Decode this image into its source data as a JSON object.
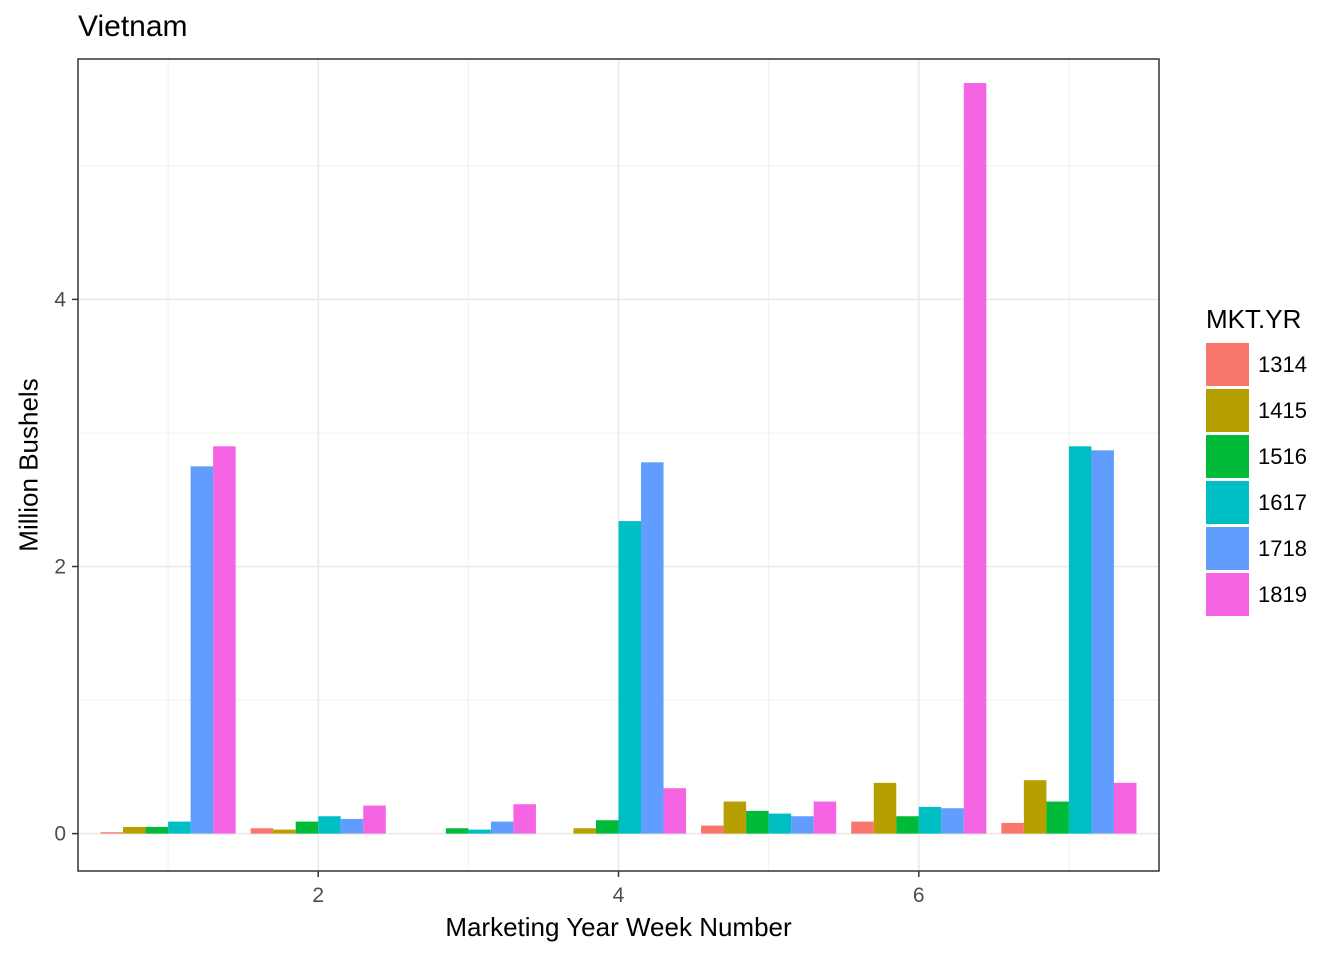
{
  "chart_data": {
    "type": "bar",
    "title": "Vietnam",
    "xlabel": "Marketing Year Week Number",
    "ylabel": "Million Bushels",
    "legend_title": "MKT.YR",
    "legend_position": "right",
    "x": [
      1,
      2,
      3,
      4,
      5,
      6,
      7
    ],
    "x_ticks": [
      2,
      4,
      6
    ],
    "xlim": [
      0.4,
      7.6
    ],
    "y_ticks": [
      0,
      2,
      4
    ],
    "ylim": [
      -0.28,
      5.8
    ],
    "grid": true,
    "series": [
      {
        "name": "1314",
        "color": "#F8766D",
        "values": [
          0.01,
          0.04,
          0,
          0,
          0.06,
          0.09,
          0.08
        ]
      },
      {
        "name": "1415",
        "color": "#B79F00",
        "values": [
          0.05,
          0.03,
          0,
          0.04,
          0.24,
          0.38,
          0.4
        ]
      },
      {
        "name": "1516",
        "color": "#00BA38",
        "values": [
          0.05,
          0.09,
          0.04,
          0.1,
          0.17,
          0.13,
          0.24
        ]
      },
      {
        "name": "1617",
        "color": "#00BFC4",
        "values": [
          0.09,
          0.13,
          0.03,
          2.34,
          0.15,
          0.2,
          2.9
        ]
      },
      {
        "name": "1718",
        "color": "#619CFF",
        "values": [
          2.75,
          0.11,
          0.09,
          2.78,
          0.13,
          0.19,
          2.87
        ]
      },
      {
        "name": "1819",
        "color": "#F564E3",
        "values": [
          2.9,
          0.21,
          0.22,
          0.34,
          0.24,
          5.62,
          0.38
        ]
      }
    ]
  }
}
